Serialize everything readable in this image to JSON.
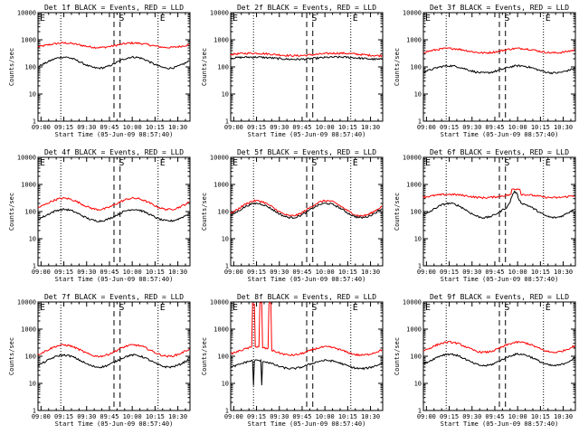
{
  "chart_data": [
    {
      "type": "line",
      "title": "Det 1f BLACK = Events, RED = LLD",
      "shape": "hump",
      "black": [
        90,
        230
      ],
      "red": [
        520,
        760
      ]
    },
    {
      "type": "line",
      "title": "Det 2f BLACK = Events, RED = LLD",
      "shape": "flat",
      "black": [
        190,
        230
      ],
      "red": [
        260,
        320
      ]
    },
    {
      "type": "line",
      "title": "Det 3f BLACK = Events, RED = LLD",
      "shape": "hump",
      "black": [
        60,
        110
      ],
      "red": [
        330,
        480
      ]
    },
    {
      "type": "line",
      "title": "Det 4f BLACK = Events, RED = LLD",
      "shape": "hump",
      "black": [
        45,
        120
      ],
      "red": [
        120,
        310
      ]
    },
    {
      "type": "line",
      "title": "Det 5f BLACK = Events, RED = LLD",
      "shape": "hump",
      "black": [
        60,
        200
      ],
      "red": [
        70,
        250
      ]
    },
    {
      "type": "line",
      "title": "Det 6f BLACK = Events, RED = LLD",
      "shape": "det6",
      "black": [
        60,
        200
      ],
      "red": [
        250,
        500
      ]
    },
    {
      "type": "line",
      "title": "Det 7f BLACK = Events, RED = LLD",
      "shape": "hump",
      "black": [
        40,
        110
      ],
      "red": [
        100,
        260
      ]
    },
    {
      "type": "line",
      "title": "Det 8f BLACK = Events, RED = LLD",
      "shape": "det8",
      "black": [
        35,
        70
      ],
      "red": [
        110,
        220
      ]
    },
    {
      "type": "line",
      "title": "Det 9f BLACK = Events, RED = LLD",
      "shape": "hump",
      "black": [
        45,
        120
      ],
      "red": [
        140,
        330
      ]
    }
  ],
  "axes": {
    "ylabel": "Counts/sec",
    "xlabel": "Start Time (05-Jun-09 08:57:40)",
    "xticks": [
      "09:00",
      "09:15",
      "09:30",
      "09:45",
      "10:00",
      "10:15",
      "10:30"
    ],
    "yticks": [
      "1",
      "10",
      "100",
      "1000",
      "10000"
    ],
    "ylim": [
      1,
      10000
    ],
    "xlim_minutes": [
      0,
      100
    ],
    "dotted_lines_minutes": [
      15,
      79
    ],
    "dashed_lines_minutes": [
      50,
      54
    ],
    "markers": [
      {
        "label": "E",
        "minute": 0
      },
      {
        "label": "S",
        "minute": 52
      },
      {
        "label": "E",
        "minute": 79
      }
    ],
    "colors": {
      "events": "#000000",
      "lld": "#ff0000"
    }
  }
}
